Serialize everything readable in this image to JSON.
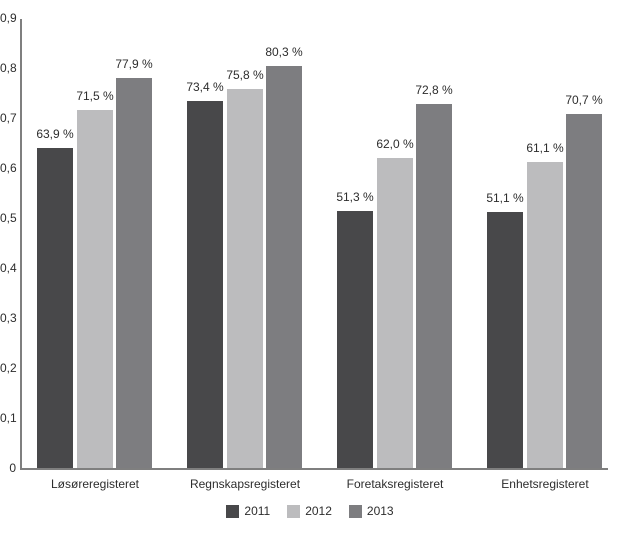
{
  "chart_data": {
    "type": "bar",
    "title": "",
    "categories": [
      "Løsøreregisteret",
      "Regnskapsregisteret",
      "Foretaksregisteret",
      "Enhetsregisteret"
    ],
    "series": [
      {
        "name": "2011",
        "color": "#48484a",
        "values": [
          0.639,
          0.734,
          0.513,
          0.511
        ],
        "value_labels": [
          "63,9 %",
          "73,4 %",
          "51,3 %",
          "51,1 %"
        ]
      },
      {
        "name": "2012",
        "color": "#bcbcbe",
        "values": [
          0.715,
          0.758,
          0.62,
          0.611
        ],
        "value_labels": [
          "71,5 %",
          "75,8 %",
          "62,0 %",
          "61,1 %"
        ]
      },
      {
        "name": "2013",
        "color": "#7d7d80",
        "values": [
          0.779,
          0.803,
          0.728,
          0.707
        ],
        "value_labels": [
          "77,9 %",
          "80,3 %",
          "72,8 %",
          "70,7 %"
        ]
      }
    ],
    "y_axis": {
      "min": 0,
      "max": 0.9,
      "step": 0.1,
      "tick_labels": [
        "0",
        "0,1",
        "0,2",
        "0,3",
        "0,4",
        "0,5",
        "0,6",
        "0,7",
        "0,8",
        "0,9"
      ]
    },
    "legend": [
      "2011",
      "2012",
      "2013"
    ],
    "legend_position": "bottom",
    "grid": false
  },
  "colors": {
    "axis": "#7f7f7f",
    "text": "#2d2d2d",
    "background": "#ffffff"
  }
}
